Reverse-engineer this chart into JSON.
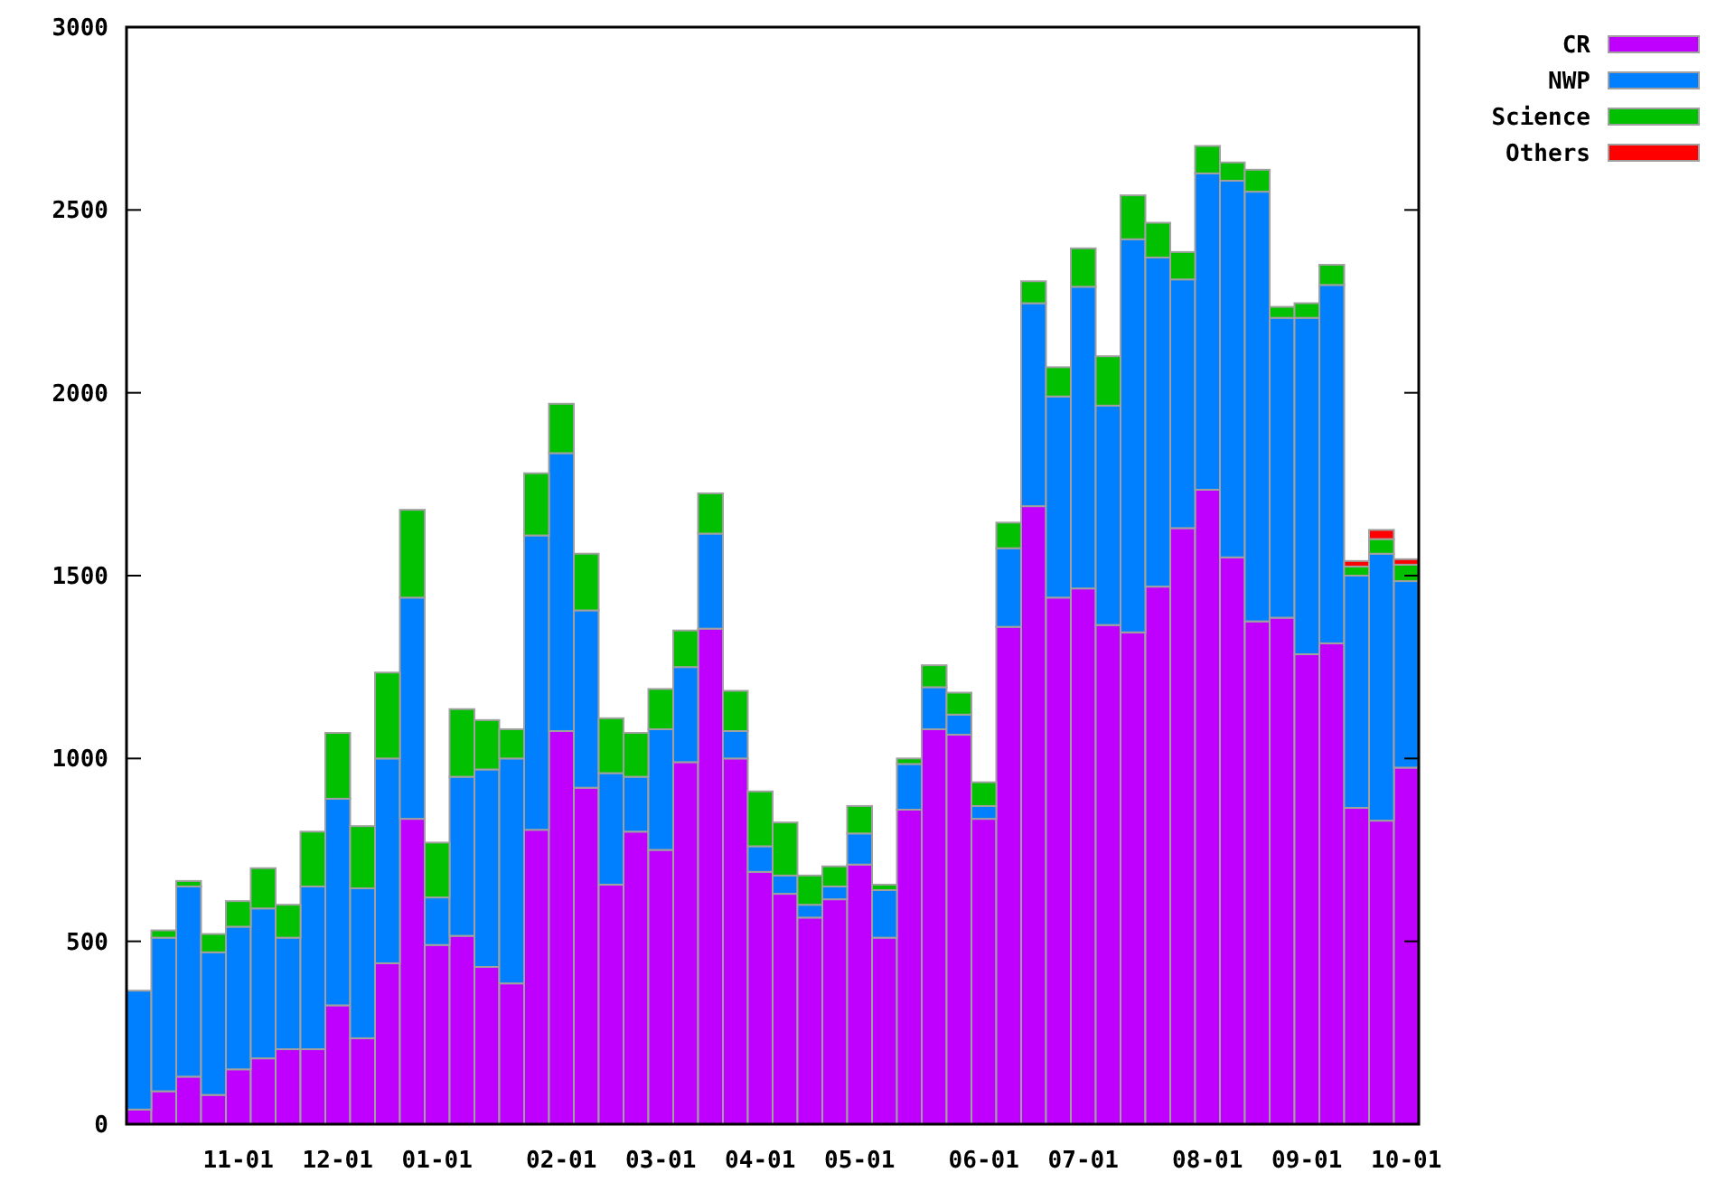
{
  "chart_data": {
    "type": "bar",
    "stacked": true,
    "legend": "top right",
    "grid": false,
    "categories": [
      null,
      null,
      null,
      null,
      "11-01",
      null,
      null,
      null,
      "12-01",
      null,
      null,
      null,
      "01-01",
      null,
      null,
      null,
      null,
      "02-01",
      null,
      null,
      null,
      "03-01",
      null,
      null,
      null,
      "04-01",
      null,
      null,
      null,
      "05-01",
      null,
      null,
      null,
      null,
      "06-01",
      null,
      null,
      null,
      "07-01",
      null,
      null,
      null,
      null,
      "08-01",
      null,
      null,
      null,
      "09-01",
      null,
      null,
      null,
      "10-01"
    ],
    "ylim": [
      0,
      3000
    ],
    "yticks": [
      0,
      500,
      1000,
      1500,
      2000,
      2500,
      3000
    ],
    "series": [
      {
        "name": "CR",
        "color": "#bf00ff",
        "values": [
          40,
          90,
          130,
          80,
          150,
          180,
          205,
          205,
          325,
          235,
          440,
          835,
          490,
          515,
          430,
          385,
          805,
          1075,
          920,
          655,
          800,
          750,
          990,
          1355,
          1000,
          690,
          630,
          565,
          615,
          710,
          510,
          860,
          1080,
          1065,
          835,
          1360,
          1690,
          1440,
          1465,
          1365,
          1345,
          1470,
          1630,
          1735,
          1550,
          1375,
          1385,
          1285,
          1315,
          865,
          830,
          975
        ]
      },
      {
        "name": "NWP",
        "color": "#0080ff",
        "values": [
          325,
          420,
          520,
          390,
          390,
          410,
          305,
          445,
          565,
          410,
          560,
          605,
          130,
          435,
          540,
          615,
          805,
          760,
          485,
          305,
          150,
          330,
          260,
          260,
          75,
          70,
          50,
          35,
          35,
          85,
          130,
          125,
          115,
          55,
          35,
          215,
          555,
          550,
          825,
          600,
          1075,
          900,
          680,
          865,
          1030,
          1175,
          820,
          920,
          980,
          635,
          730,
          510
        ]
      },
      {
        "name": "Science",
        "color": "#00c000",
        "values": [
          0,
          20,
          15,
          50,
          70,
          110,
          90,
          150,
          180,
          170,
          235,
          240,
          150,
          185,
          135,
          80,
          170,
          135,
          155,
          150,
          120,
          110,
          100,
          110,
          110,
          150,
          145,
          80,
          55,
          75,
          15,
          15,
          60,
          60,
          65,
          70,
          60,
          80,
          105,
          135,
          120,
          95,
          75,
          75,
          50,
          60,
          30,
          40,
          55,
          25,
          40,
          45
        ]
      },
      {
        "name": "Others",
        "color": "#ff0000",
        "values": [
          0,
          0,
          0,
          0,
          0,
          0,
          0,
          0,
          0,
          0,
          0,
          0,
          0,
          0,
          0,
          0,
          0,
          0,
          0,
          0,
          0,
          0,
          0,
          0,
          0,
          0,
          0,
          0,
          0,
          0,
          0,
          0,
          0,
          0,
          0,
          0,
          0,
          0,
          0,
          0,
          0,
          0,
          0,
          0,
          0,
          0,
          0,
          0,
          0,
          15,
          25,
          15
        ]
      }
    ]
  }
}
